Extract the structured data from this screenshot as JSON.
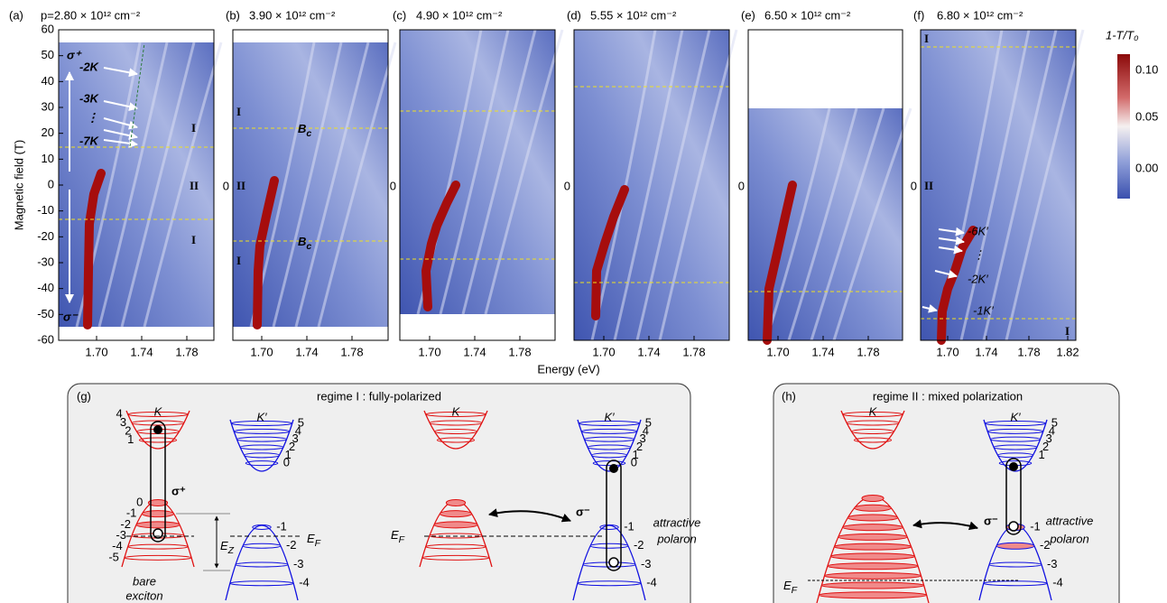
{
  "axes": {
    "y_label": "Magnetic field (T)",
    "x_label": "Energy (eV)",
    "y_ticks": [
      "60",
      "50",
      "40",
      "30",
      "20",
      "10",
      "0",
      "-10",
      "-20",
      "-30",
      "-40",
      "-50",
      "-60"
    ]
  },
  "panels": [
    {
      "label": "(a)",
      "title": "p=2.80 × 10¹² cm⁻²",
      "x_ticks": [
        "1.70",
        "1.74",
        "1.78"
      ],
      "annotations": [
        "σ⁺",
        "-2K",
        "-3K",
        "⋮",
        "-7K",
        "I",
        "II",
        "I",
        "σ⁻"
      ]
    },
    {
      "label": "(b)",
      "title": "3.90 × 10¹² cm⁻²",
      "zero_label": "0",
      "x_ticks": [
        "1.70",
        "1.74",
        "1.78"
      ],
      "annotations": [
        "I",
        "II",
        "I"
      ],
      "critical_field": {
        "main": "B",
        "sub": "c"
      }
    },
    {
      "label": "(c)",
      "title": "4.90 × 10¹² cm⁻²",
      "zero_label": "0",
      "x_ticks": [
        "1.70",
        "1.74",
        "1.78"
      ]
    },
    {
      "label": "(d)",
      "title": "5.55 × 10¹² cm⁻²",
      "zero_label": "0",
      "x_ticks": [
        "1.70",
        "1.74",
        "1.78"
      ]
    },
    {
      "label": "(e)",
      "title": "6.50 × 10¹² cm⁻²",
      "zero_label": "0",
      "x_ticks": [
        "1.70",
        "1.74",
        "1.78"
      ]
    },
    {
      "label": "(f)",
      "title": "6.80 × 10¹² cm⁻²",
      "zero_label": "0",
      "x_ticks": [
        "1.70",
        "1.74",
        "1.78",
        "1.82"
      ],
      "annotations": [
        "I",
        "II",
        "-6K′",
        "⋮",
        "-2K′",
        "-1K′",
        "I"
      ]
    }
  ],
  "colorbar": {
    "title": "1-T/T₀",
    "ticks": [
      "0.10",
      "0.05",
      "0.00"
    ]
  },
  "panel_g": {
    "label": "(g)",
    "title": "regime I : fully-polarized",
    "valley_k": "K",
    "valley_kp": "K′",
    "left": {
      "k_cond_levels": [
        "4",
        "3",
        "2",
        "1"
      ],
      "k_val_levels": [
        "0",
        "-1",
        "-2",
        "-3",
        "-4",
        "-5"
      ],
      "kp_cond_levels": [
        "5",
        "4",
        "3",
        "2",
        "1",
        "0"
      ],
      "kp_val_levels": [
        "-1",
        "-2",
        "-3",
        "-4"
      ],
      "sigma": "σ⁺",
      "zeeman": {
        "main": "E",
        "sub": "Z"
      },
      "fermi": {
        "main": "E",
        "sub": "F"
      },
      "note": [
        "bare",
        "exciton"
      ]
    },
    "right": {
      "kp_cond_levels": [
        "5",
        "4",
        "3",
        "2",
        "1",
        "0"
      ],
      "kp_val_levels": [
        "-1",
        "-2",
        "-3",
        "-4"
      ],
      "sigma": "σ⁻",
      "fermi": {
        "main": "E",
        "sub": "F"
      },
      "note": [
        "attractive",
        "polaron"
      ]
    }
  },
  "panel_h": {
    "label": "(h)",
    "title": "regime II : mixed polarization",
    "valley_k": "K",
    "valley_kp": "K′",
    "kp_cond_levels": [
      "5",
      "4",
      "3",
      "2",
      "1"
    ],
    "kp_val_levels": [
      "-1",
      "-2",
      "-3",
      "-4"
    ],
    "sigma": "σ⁻",
    "fermi": {
      "main": "E",
      "sub": "F"
    },
    "note": [
      "attractive",
      "polaron"
    ]
  }
}
